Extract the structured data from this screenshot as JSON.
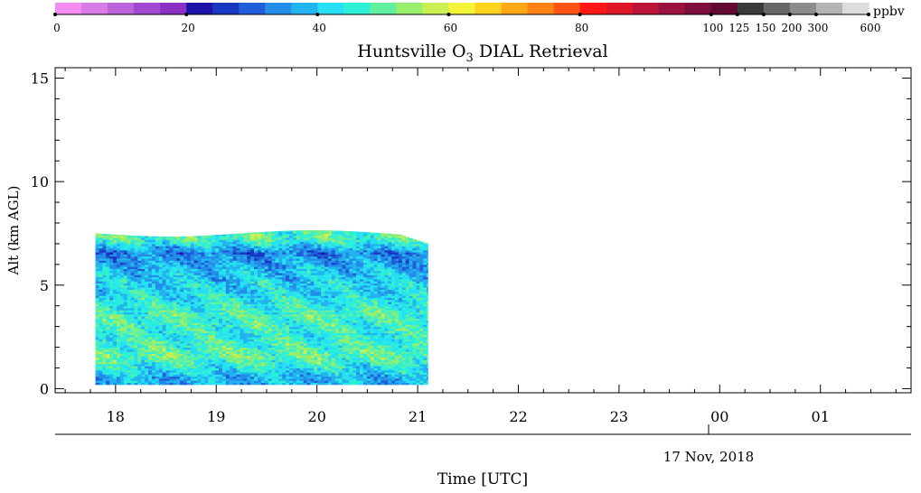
{
  "chart_data": {
    "type": "heatmap",
    "title": "Huntsville O",
    "title_subscript": "3",
    "title_suffix": " DIAL Retrieval",
    "xlabel": "Time [UTC]",
    "ylabel": "Alt (km AGL)",
    "date_label": "17 Nov, 2018",
    "colorbar_unit": "ppbv",
    "colorbar_colors": [
      "#f48cf2",
      "#d97be6",
      "#bc62da",
      "#a14ad0",
      "#8b30c4",
      "#1e13a8",
      "#1836c0",
      "#1f5ed8",
      "#238de8",
      "#23b3ee",
      "#27dff4",
      "#2ef0d6",
      "#60f0a0",
      "#99ee6c",
      "#c9f050",
      "#f4f43a",
      "#ffd21e",
      "#ffaa14",
      "#ff8214",
      "#ff5414",
      "#ff1616",
      "#de1628",
      "#bc1436",
      "#9c123e",
      "#7d0e3c",
      "#620a32",
      "#3a3a3a",
      "#686868",
      "#8c8c8c",
      "#b4b4b4",
      "#dcdcdc"
    ],
    "colorbar_ticks": [
      "0",
      "20",
      "40",
      "60",
      "80",
      "100",
      "125",
      "150",
      "200",
      "300",
      "600"
    ],
    "xaxis_ticks": [
      "18",
      "19",
      "20",
      "21",
      "22",
      "23",
      "00",
      "01"
    ],
    "yaxis_ticks": [
      "0",
      "5",
      "10",
      "15"
    ],
    "xlim_hours": [
      17.4,
      25.9
    ],
    "ylim_km": [
      -0.2,
      15.5
    ],
    "data_extent": {
      "time_start_hours": 17.8,
      "time_end_hours": 21.1,
      "alt_bottom_km": 0.2,
      "alt_top_km": 7.5
    },
    "typical_values_ppbv": [
      {
        "alt_km": 0.5,
        "o3_ppbv": 38
      },
      {
        "alt_km": 1.5,
        "o3_ppbv": 50
      },
      {
        "alt_km": 2.5,
        "o3_ppbv": 45
      },
      {
        "alt_km": 3.5,
        "o3_ppbv": 48
      },
      {
        "alt_km": 4.5,
        "o3_ppbv": 42
      },
      {
        "alt_km": 5.5,
        "o3_ppbv": 40
      },
      {
        "alt_km": 6.5,
        "o3_ppbv": 33
      },
      {
        "alt_km": 7.2,
        "o3_ppbv": 48
      }
    ]
  }
}
